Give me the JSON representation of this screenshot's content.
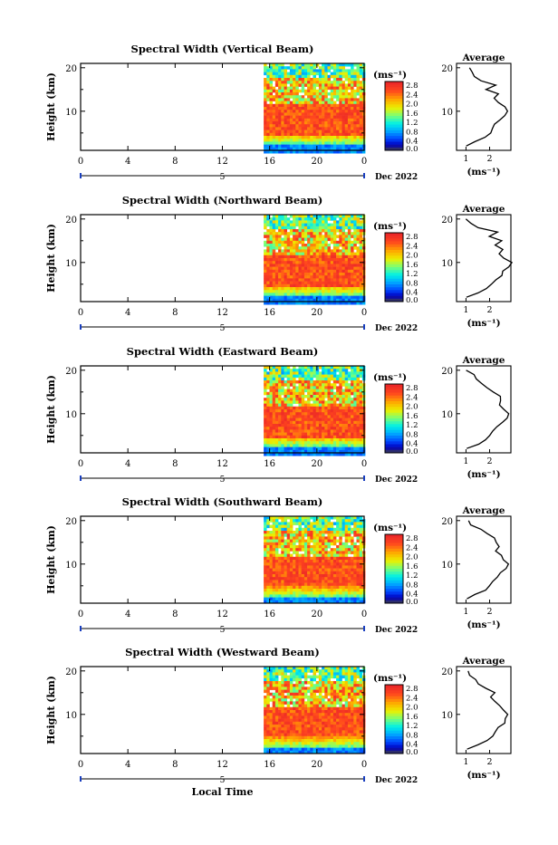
{
  "figure": {
    "xlabel": "Local Time",
    "date_label": "Dec 2022",
    "day_label": "5",
    "avg_title": "Average",
    "unit_label": "(ms⁻¹)",
    "ylabel": "Height (km)",
    "x_ticks": [
      "0",
      "4",
      "8",
      "12",
      "16",
      "20",
      "0"
    ],
    "y_ticks": [
      "20",
      "10"
    ],
    "colorbar_ticks": [
      "2.8",
      "2.4",
      "2.0",
      "1.6",
      "1.2",
      "0.8",
      "0.4",
      "0.0"
    ]
  },
  "chart_data": [
    {
      "type": "heatmap",
      "title": "Spectral Width (Vertical Beam)",
      "xlabel": "Local Time",
      "ylabel": "Height (km)",
      "xlim": [
        0,
        24
      ],
      "ylim": [
        1,
        21
      ],
      "data_start_hour": 15.5,
      "colorbar": {
        "label": "(ms⁻¹)",
        "range": [
          0.0,
          3.0
        ]
      },
      "average_profile": {
        "title": "Average",
        "xlabel": "(ms⁻¹)",
        "xticks": [
          "1",
          "2"
        ],
        "xlim": [
          0.6,
          2.9
        ],
        "profile": [
          [
            1.0,
            2.0
          ],
          [
            1.4,
            3.0
          ],
          [
            1.8,
            4.0
          ],
          [
            2.0,
            5.0
          ],
          [
            2.1,
            6.0
          ],
          [
            2.2,
            7.0
          ],
          [
            2.4,
            8.0
          ],
          [
            2.6,
            9.0
          ],
          [
            2.8,
            10.0
          ],
          [
            2.6,
            11.0
          ],
          [
            2.4,
            12.0
          ],
          [
            2.3,
            13.0
          ],
          [
            2.2,
            14.0
          ],
          [
            2.0,
            15.0
          ],
          [
            2.3,
            16.0
          ],
          [
            1.8,
            17.0
          ],
          [
            1.5,
            18.0
          ],
          [
            1.2,
            19.0
          ],
          [
            1.0,
            20.0
          ]
        ]
      }
    },
    {
      "type": "heatmap",
      "title": "Spectral Width (Northward Beam)",
      "xlabel": "Local Time",
      "ylabel": "Height (km)",
      "xlim": [
        0,
        24
      ],
      "ylim": [
        1,
        21
      ],
      "data_start_hour": 15.5,
      "colorbar": {
        "label": "(ms⁻¹)",
        "range": [
          0.0,
          3.0
        ]
      },
      "average_profile": {
        "title": "Average",
        "xlabel": "(ms⁻¹)",
        "xticks": [
          "1",
          "2"
        ],
        "xlim": [
          0.6,
          2.9
        ],
        "profile": [
          [
            1.0,
            2.0
          ],
          [
            1.5,
            3.0
          ],
          [
            1.9,
            4.0
          ],
          [
            2.1,
            5.0
          ],
          [
            2.3,
            6.0
          ],
          [
            2.5,
            7.0
          ],
          [
            2.6,
            8.0
          ],
          [
            2.8,
            9.0
          ],
          [
            2.9,
            10.0
          ],
          [
            2.6,
            11.0
          ],
          [
            2.4,
            12.0
          ],
          [
            2.5,
            13.0
          ],
          [
            2.2,
            14.0
          ],
          [
            2.4,
            15.0
          ],
          [
            2.0,
            16.0
          ],
          [
            2.2,
            17.0
          ],
          [
            1.6,
            18.0
          ],
          [
            1.3,
            19.0
          ],
          [
            1.0,
            20.0
          ]
        ]
      }
    },
    {
      "type": "heatmap",
      "title": "Spectral Width (Eastward Beam)",
      "xlabel": "Local Time",
      "ylabel": "Height (km)",
      "xlim": [
        0,
        24
      ],
      "ylim": [
        1,
        21
      ],
      "data_start_hour": 15.5,
      "colorbar": {
        "label": "(ms⁻¹)",
        "range": [
          0.0,
          3.0
        ]
      },
      "average_profile": {
        "title": "Average",
        "xlabel": "(ms⁻¹)",
        "xticks": [
          "1",
          "2"
        ],
        "xlim": [
          0.6,
          2.9
        ],
        "profile": [
          [
            1.0,
            2.0
          ],
          [
            1.5,
            3.0
          ],
          [
            1.8,
            4.0
          ],
          [
            2.0,
            5.0
          ],
          [
            2.1,
            6.0
          ],
          [
            2.3,
            7.0
          ],
          [
            2.5,
            8.0
          ],
          [
            2.7,
            9.0
          ],
          [
            2.8,
            10.0
          ],
          [
            2.6,
            11.0
          ],
          [
            2.4,
            12.0
          ],
          [
            2.6,
            13.0
          ],
          [
            2.3,
            14.0
          ],
          [
            2.2,
            15.0
          ],
          [
            2.0,
            16.0
          ],
          [
            1.7,
            17.0
          ],
          [
            1.4,
            18.0
          ],
          [
            1.2,
            19.0
          ],
          [
            1.0,
            20.0
          ]
        ]
      }
    },
    {
      "type": "heatmap",
      "title": "Spectral Width (Southward Beam)",
      "xlabel": "Local Time",
      "ylabel": "Height (km)",
      "xlim": [
        0,
        24
      ],
      "ylim": [
        1,
        21
      ],
      "data_start_hour": 15.5,
      "colorbar": {
        "label": "(ms⁻¹)",
        "range": [
          0.0,
          3.0
        ]
      },
      "average_profile": {
        "title": "Average",
        "xlabel": "(ms⁻¹)",
        "xticks": [
          "1",
          "2"
        ],
        "xlim": [
          0.6,
          2.9
        ],
        "profile": [
          [
            1.0,
            2.0
          ],
          [
            1.4,
            3.0
          ],
          [
            1.8,
            4.0
          ],
          [
            2.0,
            5.0
          ],
          [
            2.1,
            6.0
          ],
          [
            2.3,
            7.0
          ],
          [
            2.5,
            8.0
          ],
          [
            2.7,
            9.0
          ],
          [
            2.8,
            10.0
          ],
          [
            2.6,
            11.0
          ],
          [
            2.5,
            12.0
          ],
          [
            2.3,
            13.0
          ],
          [
            2.4,
            14.0
          ],
          [
            2.2,
            15.0
          ],
          [
            2.3,
            16.0
          ],
          [
            1.9,
            17.0
          ],
          [
            1.5,
            18.0
          ],
          [
            1.2,
            19.0
          ],
          [
            1.0,
            20.0
          ]
        ]
      }
    },
    {
      "type": "heatmap",
      "title": "Spectral Width (Westward Beam)",
      "xlabel": "Local Time",
      "ylabel": "Height (km)",
      "xlim": [
        0,
        24
      ],
      "ylim": [
        1,
        21
      ],
      "data_start_hour": 15.5,
      "colorbar": {
        "label": "(ms⁻¹)",
        "range": [
          0.0,
          3.0
        ]
      },
      "average_profile": {
        "title": "Average",
        "xlabel": "(ms⁻¹)",
        "xticks": [
          "1",
          "2"
        ],
        "xlim": [
          0.6,
          2.9
        ],
        "profile": [
          [
            1.0,
            2.0
          ],
          [
            1.5,
            3.0
          ],
          [
            1.9,
            4.0
          ],
          [
            2.1,
            5.0
          ],
          [
            2.2,
            6.0
          ],
          [
            2.4,
            7.0
          ],
          [
            2.6,
            8.0
          ],
          [
            2.7,
            9.0
          ],
          [
            2.8,
            10.0
          ],
          [
            2.6,
            11.0
          ],
          [
            2.4,
            12.0
          ],
          [
            2.2,
            13.0
          ],
          [
            2.0,
            14.0
          ],
          [
            2.3,
            15.0
          ],
          [
            1.9,
            16.0
          ],
          [
            1.6,
            17.0
          ],
          [
            1.3,
            18.0
          ],
          [
            1.1,
            19.0
          ],
          [
            1.0,
            20.0
          ]
        ]
      }
    }
  ]
}
